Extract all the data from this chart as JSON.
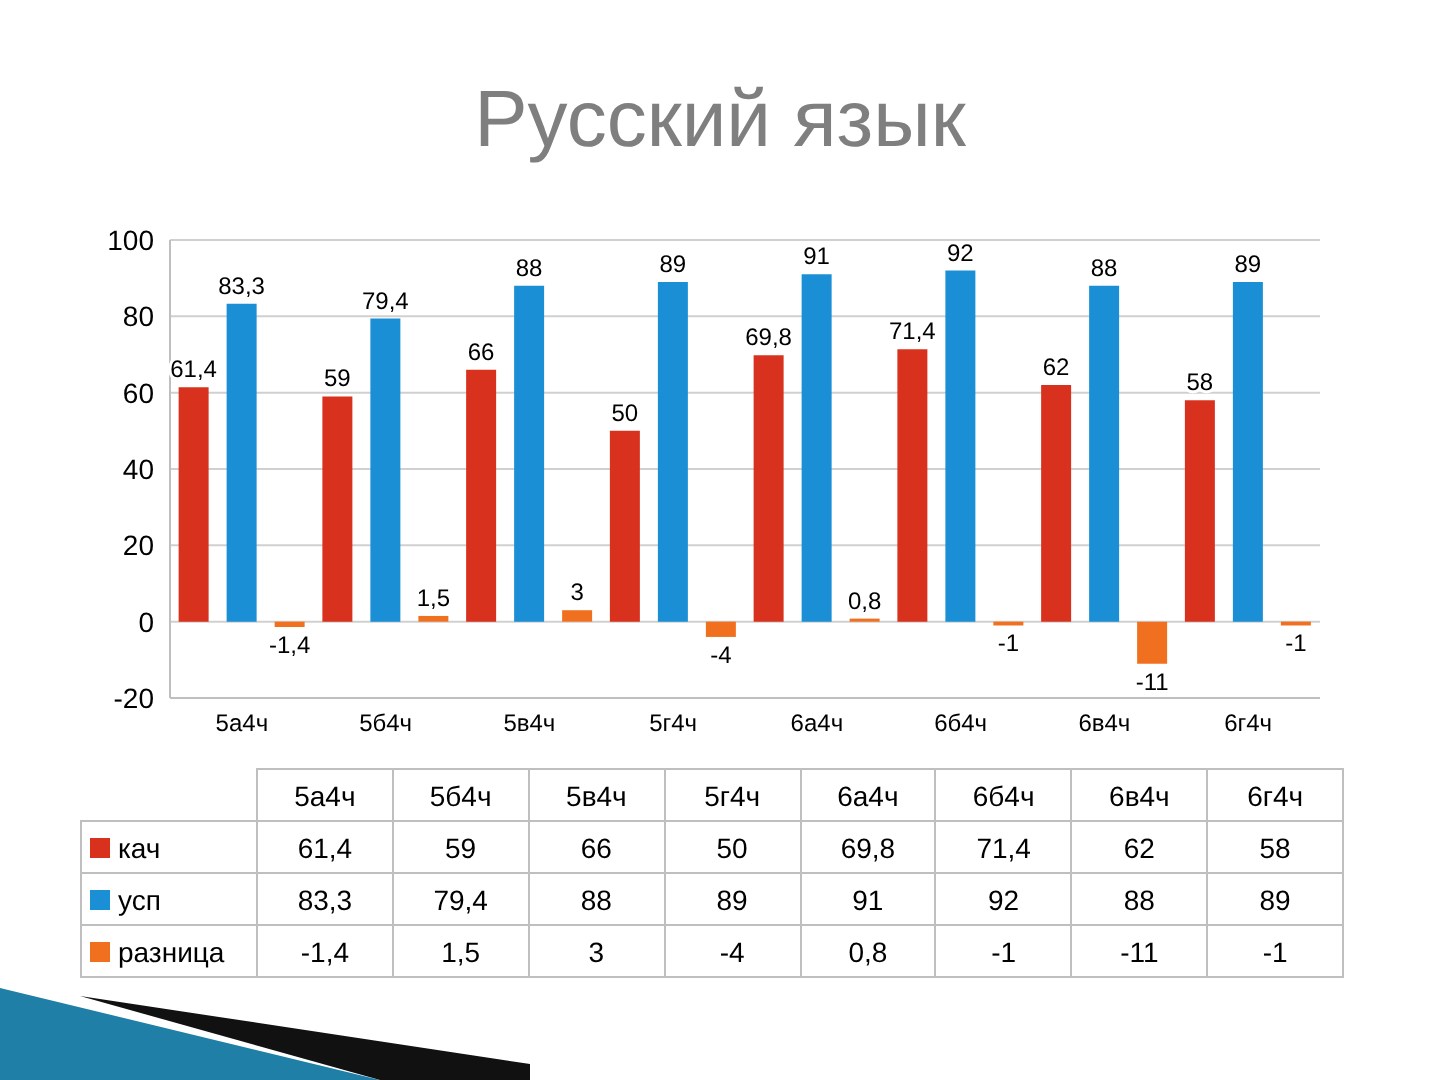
{
  "chart_data": {
    "type": "bar",
    "title": "Русский язык",
    "categories": [
      "5а4ч",
      "5б4ч",
      "5в4ч",
      "5г4ч",
      "6а4ч",
      "6б4ч",
      "6в4ч",
      "6г4ч"
    ],
    "series": [
      {
        "name": "кач",
        "color": "#d8321e",
        "values": [
          61.4,
          59,
          66,
          50,
          69.8,
          71.4,
          62,
          58
        ],
        "value_labels": [
          "61,4",
          "59",
          "66",
          "50",
          "69,8",
          "71,4",
          "62",
          "58"
        ]
      },
      {
        "name": "усп",
        "color": "#1a8fd6",
        "values": [
          83.3,
          79.4,
          88,
          89,
          91,
          92,
          88,
          89
        ],
        "value_labels": [
          "83,3",
          "79,4",
          "88",
          "89",
          "91",
          "92",
          "88",
          "89"
        ]
      },
      {
        "name": "разница",
        "color": "#f07020",
        "values": [
          -1.4,
          1.5,
          3,
          -4,
          0.8,
          -1,
          -11,
          -1
        ],
        "value_labels": [
          "-1,4",
          "1,5",
          "3",
          "-4",
          "0,8",
          "-1",
          "-11",
          "-1"
        ]
      }
    ],
    "ylim": [
      -20,
      100
    ],
    "yticks": [
      -20,
      0,
      20,
      40,
      60,
      80,
      100
    ],
    "grid": "y",
    "legend": "bottom"
  }
}
